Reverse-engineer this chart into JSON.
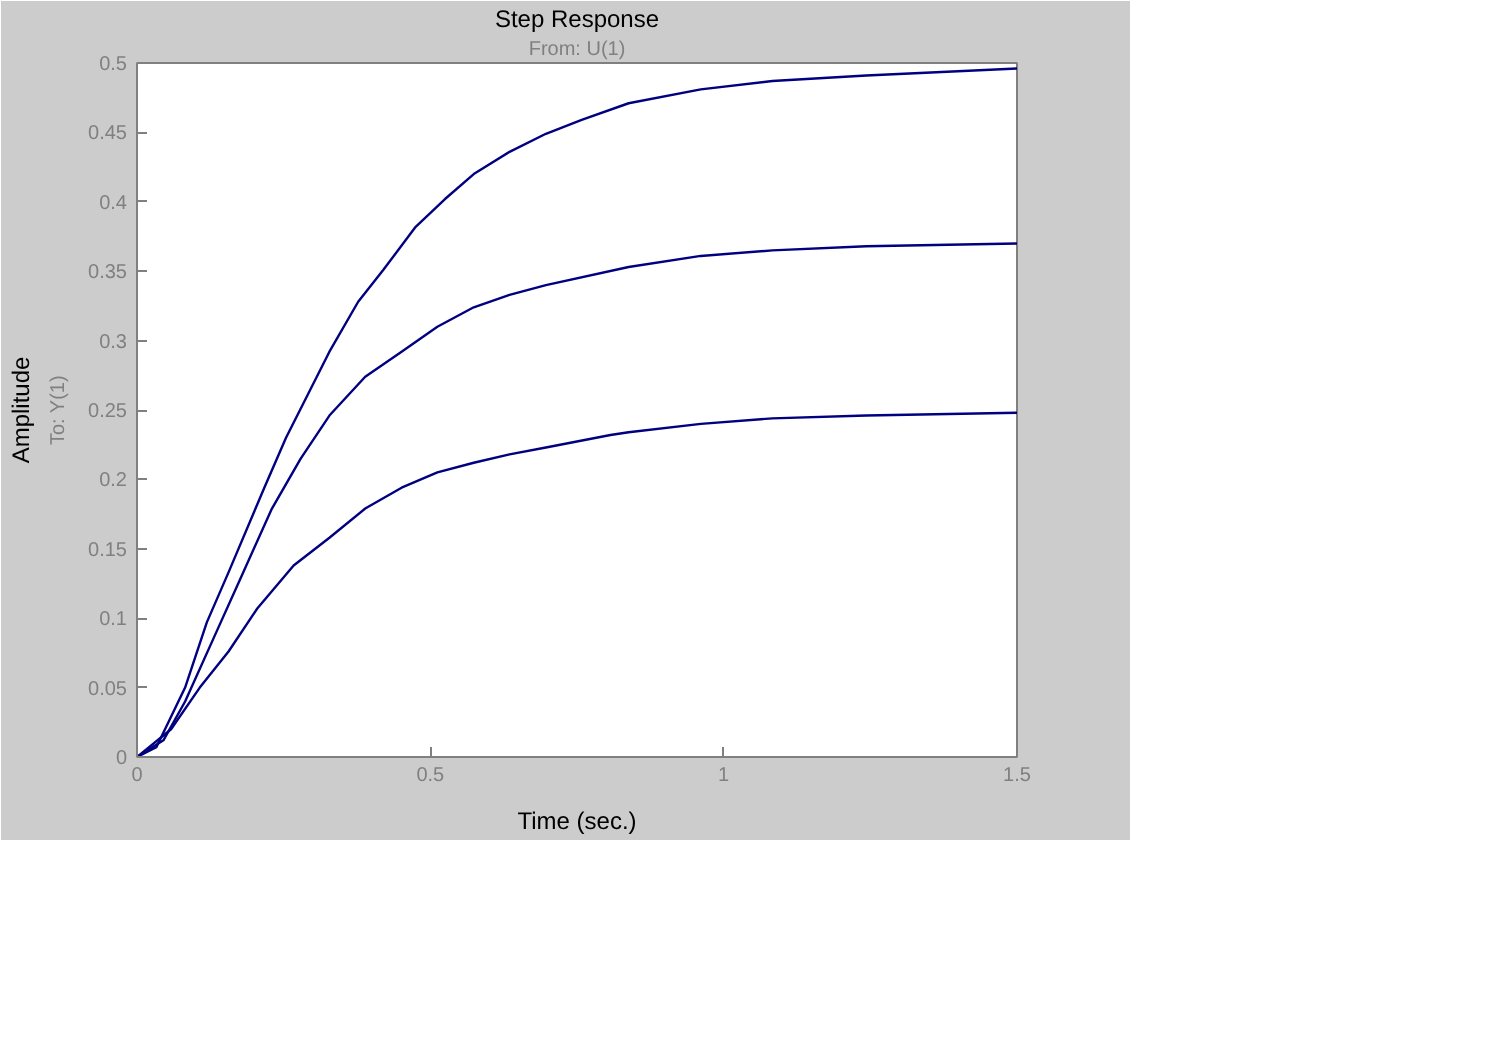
{
  "chart_data": {
    "type": "line",
    "title": "Step Response",
    "subtitle": "From: U(1)",
    "xlabel": "Time (sec.)",
    "ylabel": "Amplitude",
    "annotations": [
      "To: Y(1)"
    ],
    "xlim": [
      0,
      1.5
    ],
    "ylim": [
      0,
      0.5
    ],
    "xticks": [
      0,
      0.5,
      1,
      1.5
    ],
    "yticks": [
      0,
      0.05,
      0.1,
      0.15,
      0.2,
      0.25,
      0.3,
      0.35,
      0.4,
      0.45,
      0.5
    ],
    "grid": false,
    "series": [
      {
        "color": "#000080",
        "x": [
          0,
          0.033,
          0.082,
          0.119,
          0.156,
          0.217,
          0.254,
          0.291,
          0.328,
          0.377,
          0.42,
          0.475,
          0.525,
          0.574,
          0.635,
          0.697,
          0.758,
          0.838,
          0.961,
          1.083,
          1.243,
          1.5
        ],
        "values": [
          0,
          0.007,
          0.05,
          0.097,
          0.133,
          0.194,
          0.23,
          0.261,
          0.292,
          0.328,
          0.351,
          0.382,
          0.402,
          0.42,
          0.436,
          0.449,
          0.459,
          0.471,
          0.481,
          0.487,
          0.491,
          0.496
        ]
      },
      {
        "color": "#000080",
        "x": [
          0,
          0.045,
          0.082,
          0.131,
          0.181,
          0.23,
          0.279,
          0.328,
          0.389,
          0.451,
          0.512,
          0.574,
          0.635,
          0.697,
          0.838,
          0.961,
          1.083,
          1.243,
          1.5
        ],
        "values": [
          0,
          0.012,
          0.04,
          0.086,
          0.133,
          0.179,
          0.215,
          0.246,
          0.274,
          0.292,
          0.31,
          0.324,
          0.333,
          0.34,
          0.353,
          0.361,
          0.365,
          0.368,
          0.37
        ]
      },
      {
        "color": "#000080",
        "x": [
          0,
          0.058,
          0.107,
          0.156,
          0.205,
          0.267,
          0.328,
          0.389,
          0.451,
          0.512,
          0.574,
          0.635,
          0.697,
          0.807,
          0.838,
          0.961,
          1.083,
          1.243,
          1.5
        ],
        "values": [
          0,
          0.02,
          0.05,
          0.076,
          0.107,
          0.138,
          0.158,
          0.179,
          0.194,
          0.205,
          0.212,
          0.218,
          0.223,
          0.232,
          0.234,
          0.24,
          0.244,
          0.246,
          0.248
        ]
      }
    ]
  }
}
